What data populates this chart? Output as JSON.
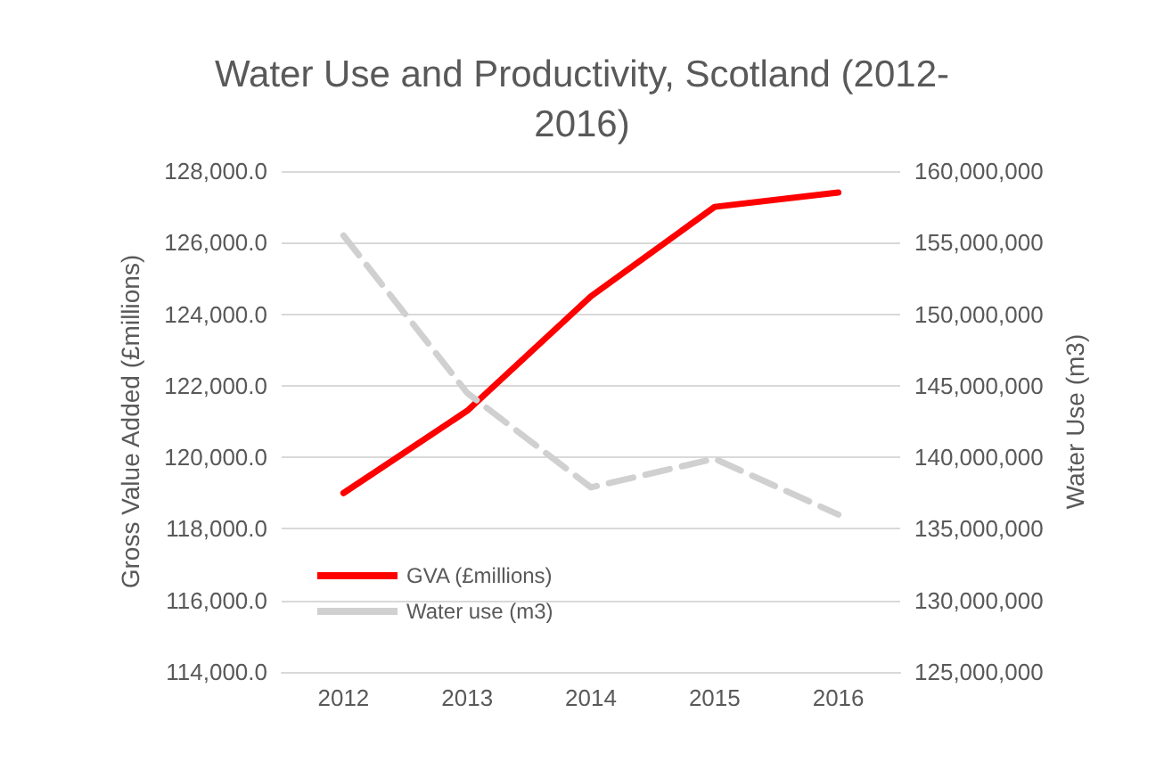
{
  "chart_data": {
    "type": "line",
    "title": "Water Use and Productivity, Scotland (2012-\n2016)",
    "categories": [
      "2012",
      "2013",
      "2014",
      "2015",
      "2016"
    ],
    "ylabel": "Gross Value Added (£millions)",
    "y2label": "Water Use (m3)",
    "series": [
      {
        "name": "GVA (£millions)",
        "color": "#ff0000",
        "values": [
          119000,
          121300,
          124500,
          127000,
          127400
        ],
        "line_style": "solid"
      },
      {
        "name": "Water use (m3)",
        "color": "#d0d0d0",
        "values": [
          155500000,
          144500000,
          137900000,
          139900000,
          136000000
        ],
        "axis": "y2",
        "line_style": "dashed"
      }
    ],
    "ylim": [
      114000,
      128000
    ],
    "yticks": [
      {
        "value": 114000,
        "label": "114,000.0"
      },
      {
        "value": 116000,
        "label": "116,000.0"
      },
      {
        "value": 118000,
        "label": "118,000.0"
      },
      {
        "value": 120000,
        "label": "120,000.0"
      },
      {
        "value": 122000,
        "label": "122,000.0"
      },
      {
        "value": 124000,
        "label": "124,000.0"
      },
      {
        "value": 126000,
        "label": "126,000.0"
      },
      {
        "value": 128000,
        "label": "128,000.0"
      }
    ],
    "y2lim": [
      125000000,
      160000000
    ],
    "y2ticks": [
      {
        "value": 125000000,
        "label": "125,000,000"
      },
      {
        "value": 130000000,
        "label": "130,000,000"
      },
      {
        "value": 135000000,
        "label": "135,000,000"
      },
      {
        "value": 140000000,
        "label": "140,000,000"
      },
      {
        "value": 145000000,
        "label": "145,000,000"
      },
      {
        "value": 150000000,
        "label": "150,000,000"
      },
      {
        "value": 155000000,
        "label": "155,000,000"
      },
      {
        "value": 160000000,
        "label": "160,000,000"
      }
    ],
    "grid": "y",
    "legend": "bottom left",
    "marker": "none"
  }
}
